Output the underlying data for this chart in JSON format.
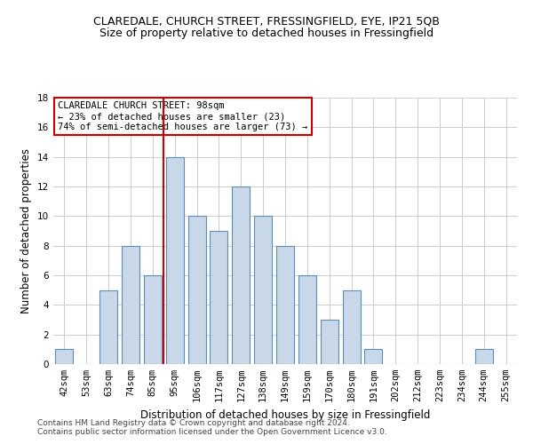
{
  "title1": "CLAREDALE, CHURCH STREET, FRESSINGFIELD, EYE, IP21 5QB",
  "title2": "Size of property relative to detached houses in Fressingfield",
  "xlabel": "Distribution of detached houses by size in Fressingfield",
  "ylabel": "Number of detached properties",
  "categories": [
    "42sqm",
    "53sqm",
    "63sqm",
    "74sqm",
    "85sqm",
    "95sqm",
    "106sqm",
    "117sqm",
    "127sqm",
    "138sqm",
    "149sqm",
    "159sqm",
    "170sqm",
    "180sqm",
    "191sqm",
    "202sqm",
    "212sqm",
    "223sqm",
    "234sqm",
    "244sqm",
    "255sqm"
  ],
  "values": [
    1,
    0,
    5,
    8,
    6,
    14,
    10,
    9,
    12,
    10,
    8,
    6,
    3,
    5,
    1,
    0,
    0,
    0,
    0,
    1,
    0
  ],
  "bar_color": "#c8d8e8",
  "bar_edge_color": "#5b8db8",
  "bar_width": 0.8,
  "ylim": [
    0,
    18
  ],
  "yticks": [
    0,
    2,
    4,
    6,
    8,
    10,
    12,
    14,
    16,
    18
  ],
  "vline_x_index": 4.5,
  "vline_color": "#cc0000",
  "annotation_text": "CLAREDALE CHURCH STREET: 98sqm\n← 23% of detached houses are smaller (23)\n74% of semi-detached houses are larger (73) →",
  "annotation_box_color": "#ffffff",
  "annotation_box_edge": "#cc0000",
  "footer1": "Contains HM Land Registry data © Crown copyright and database right 2024.",
  "footer2": "Contains public sector information licensed under the Open Government Licence v3.0.",
  "bg_color": "#ffffff",
  "grid_color": "#cccccc",
  "title1_fontsize": 9,
  "title2_fontsize": 9,
  "xlabel_fontsize": 8.5,
  "ylabel_fontsize": 8.5,
  "tick_fontsize": 7.5,
  "annot_fontsize": 7.5,
  "footer_fontsize": 6.5
}
